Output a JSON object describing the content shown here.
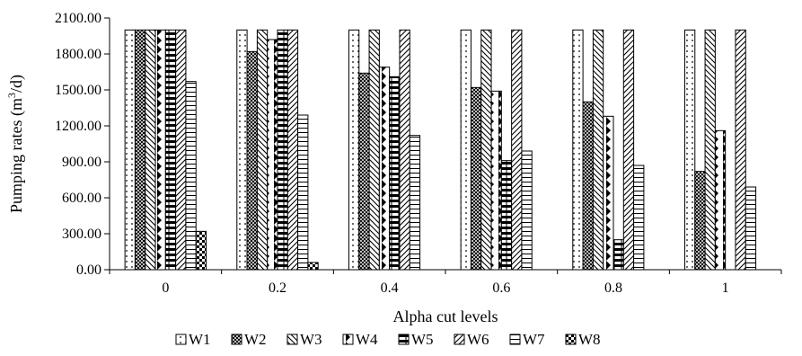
{
  "chart_data": {
    "type": "bar",
    "title": "",
    "xlabel": "Alpha cut levels",
    "ylabel_prefix": "Pumping rates (m",
    "ylabel_sup": "3",
    "ylabel_suffix": "/d)",
    "categories": [
      "0",
      "0.2",
      "0.4",
      "0.6",
      "0.8",
      "1"
    ],
    "ylim": [
      0,
      2100
    ],
    "yticks": [
      "0.00",
      "300.00",
      "600.00",
      "900.00",
      "1200.00",
      "1500.00",
      "1800.00",
      "2100.00"
    ],
    "grid": false,
    "legend_position": "bottom",
    "series": [
      {
        "name": "W1",
        "pattern": "dots",
        "values": [
          2000,
          2000,
          2000,
          2000,
          2000,
          2000
        ]
      },
      {
        "name": "W2",
        "pattern": "crosshatch",
        "values": [
          2000,
          1820,
          1640,
          1520,
          1400,
          820
        ]
      },
      {
        "name": "W3",
        "pattern": "diag-down",
        "values": [
          2000,
          2000,
          2000,
          2000,
          2000,
          2000
        ]
      },
      {
        "name": "W4",
        "pattern": "diamonds",
        "values": [
          2000,
          1920,
          1690,
          1490,
          1280,
          1160
        ]
      },
      {
        "name": "W5",
        "pattern": "horiz-bricks",
        "values": [
          2000,
          2000,
          1610,
          910,
          250,
          0
        ]
      },
      {
        "name": "W6",
        "pattern": "diag-up",
        "values": [
          2000,
          2000,
          2000,
          2000,
          2000,
          2000
        ]
      },
      {
        "name": "W7",
        "pattern": "horiz-lines",
        "values": [
          1570,
          1290,
          1120,
          990,
          870,
          690
        ]
      },
      {
        "name": "W8",
        "pattern": "checker",
        "values": [
          320,
          60,
          0,
          0,
          0,
          0
        ]
      }
    ]
  }
}
